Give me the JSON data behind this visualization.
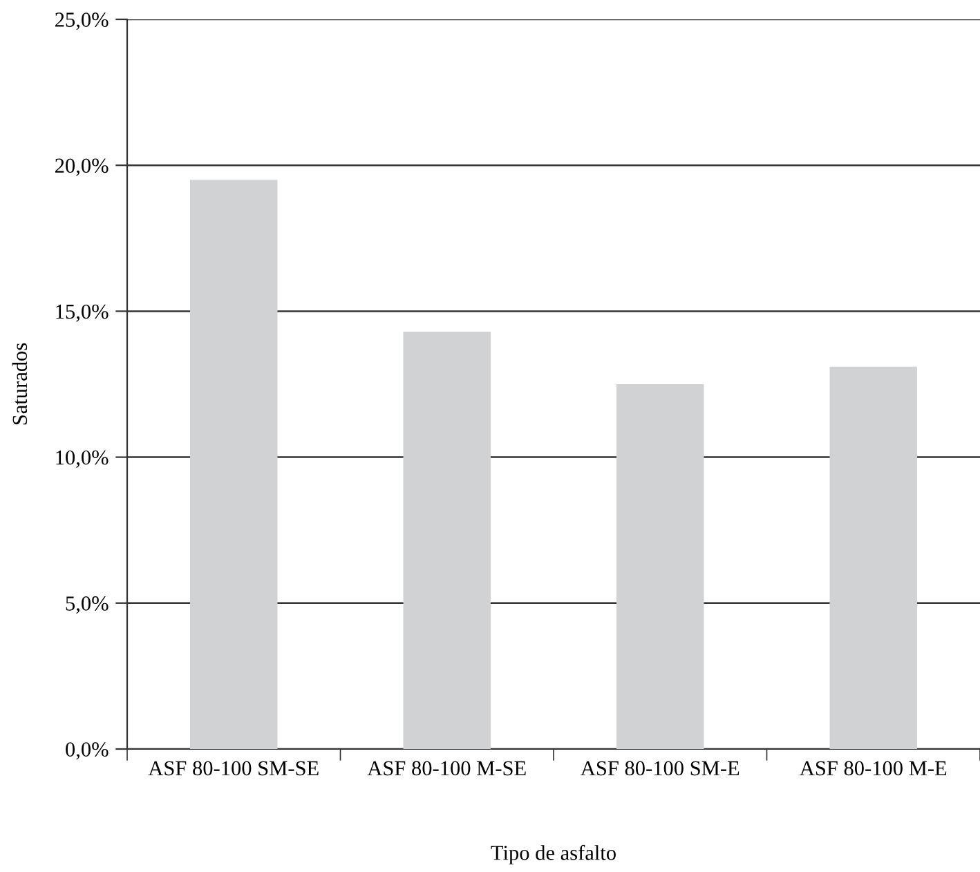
{
  "chart_data": {
    "type": "bar",
    "xlabel": "Tipo de asfalto",
    "ylabel": "Saturados",
    "categories": [
      "ASF 80-100 SM-SE",
      "ASF 80-100 M-SE",
      "ASF 80-100 SM-E",
      "ASF 80-100 M-E"
    ],
    "values": [
      19.5,
      14.3,
      12.5,
      13.1
    ],
    "color": "#d1d2d4",
    "ylim": [
      0,
      25
    ],
    "yticks": [
      {
        "value": 0,
        "label": "0,0%"
      },
      {
        "value": 5,
        "label": "5,0%"
      },
      {
        "value": 10,
        "label": "10,0%"
      },
      {
        "value": 15,
        "label": "15,0%"
      },
      {
        "value": 20,
        "label": "20,0%"
      },
      {
        "value": 25,
        "label": "25,0%"
      }
    ],
    "grid": "y"
  }
}
